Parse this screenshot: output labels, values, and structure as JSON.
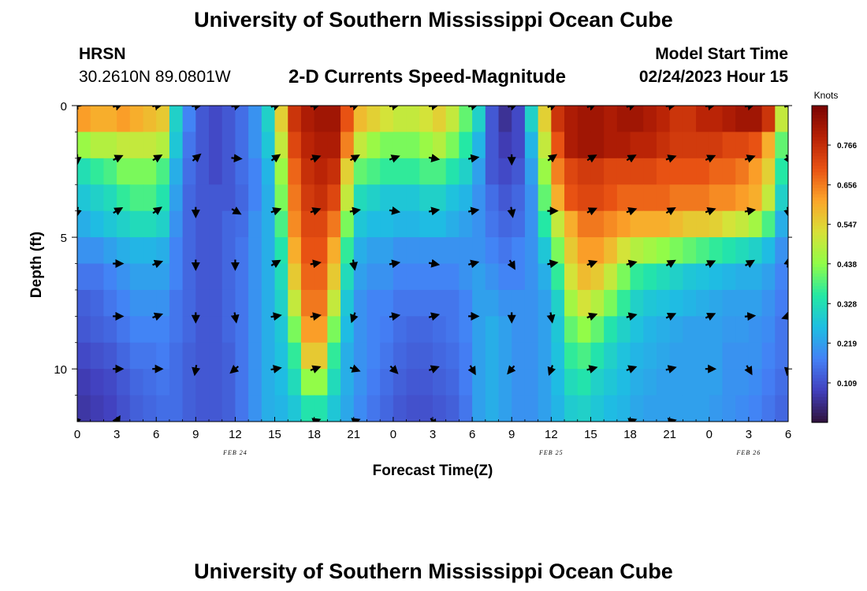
{
  "page": {
    "title": "University of Southern Mississippi Ocean Cube",
    "footer_title": "University of Southern Mississippi Ocean Cube",
    "station": "HRSN",
    "coords": "30.2610N  89.0801W",
    "plot_title": "2-D Currents Speed-Magnitude",
    "model_label": "Model Start Time",
    "model_time": "02/24/2023 Hour 15"
  },
  "chart_data": {
    "type": "heatmap",
    "title": "2-D Currents Speed-Magnitude",
    "xlabel": "Forecast Time(Z)",
    "ylabel": "Depth (ft)",
    "x_unit": "hours since FEB 24 00Z",
    "xlim": [
      0,
      54
    ],
    "ylim": [
      0,
      12
    ],
    "y_inverted": true,
    "x_ticks": [
      0,
      3,
      6,
      9,
      12,
      15,
      18,
      21,
      24,
      27,
      30,
      33,
      36,
      39,
      42,
      45,
      48,
      51,
      54
    ],
    "x_tick_labels": [
      "0",
      "3",
      "6",
      "9",
      "12",
      "15",
      "18",
      "21",
      "0",
      "3",
      "6",
      "9",
      "12",
      "15",
      "18",
      "21",
      "0",
      "3",
      "6"
    ],
    "y_ticks": [
      0,
      5,
      10
    ],
    "y_tick_labels": [
      "0",
      "5",
      "10"
    ],
    "date_labels": [
      {
        "x": 12,
        "text": "FEB 24"
      },
      {
        "x": 36,
        "text": "FEB 25"
      },
      {
        "x": 51,
        "text": "FEB 26"
      }
    ],
    "colorbar": {
      "unit": "Knots",
      "min": 0.0,
      "max": 0.875,
      "ticks": [
        0.109,
        0.219,
        0.328,
        0.438,
        0.547,
        0.656,
        0.766
      ],
      "tick_labels": [
        "0.109",
        "0.219",
        "0.328",
        "0.438",
        "0.547",
        "0.656",
        "0.766"
      ]
    },
    "speed_grid": {
      "x_hours": [
        0,
        1,
        2,
        3,
        4,
        5,
        6,
        7,
        8,
        9,
        10,
        11,
        12,
        13,
        14,
        15,
        16,
        17,
        18,
        19,
        20,
        21,
        22,
        23,
        24,
        25,
        26,
        27,
        28,
        29,
        30,
        31,
        32,
        33,
        34,
        35,
        36,
        37,
        38,
        39,
        40,
        41,
        42,
        43,
        44,
        45,
        46,
        47,
        48,
        49,
        50,
        51,
        52,
        53
      ],
      "depth_bands_ft": [
        [
          0,
          1
        ],
        [
          1,
          2
        ],
        [
          2,
          3
        ],
        [
          3,
          4
        ],
        [
          4,
          5
        ],
        [
          5,
          6
        ],
        [
          6,
          7
        ],
        [
          7,
          8
        ],
        [
          8,
          9
        ],
        [
          9,
          10
        ],
        [
          10,
          11
        ],
        [
          11,
          12
        ]
      ],
      "values_knots": [
        [
          0.62,
          0.6,
          0.6,
          0.62,
          0.6,
          0.58,
          0.56,
          0.3,
          0.18,
          0.12,
          0.1,
          0.12,
          0.15,
          0.2,
          0.3,
          0.55,
          0.75,
          0.8,
          0.82,
          0.82,
          0.7,
          0.58,
          0.55,
          0.52,
          0.5,
          0.5,
          0.52,
          0.55,
          0.5,
          0.4,
          0.3,
          0.12,
          0.06,
          0.1,
          0.3,
          0.55,
          0.75,
          0.8,
          0.82,
          0.82,
          0.8,
          0.82,
          0.82,
          0.8,
          0.78,
          0.75,
          0.75,
          0.78,
          0.78,
          0.8,
          0.82,
          0.82,
          0.75,
          0.5
        ],
        [
          0.45,
          0.48,
          0.48,
          0.5,
          0.5,
          0.5,
          0.48,
          0.28,
          0.16,
          0.12,
          0.1,
          0.12,
          0.15,
          0.2,
          0.28,
          0.5,
          0.72,
          0.78,
          0.8,
          0.8,
          0.65,
          0.5,
          0.45,
          0.42,
          0.42,
          0.42,
          0.45,
          0.48,
          0.42,
          0.35,
          0.25,
          0.12,
          0.08,
          0.1,
          0.25,
          0.5,
          0.7,
          0.8,
          0.82,
          0.82,
          0.8,
          0.8,
          0.78,
          0.78,
          0.76,
          0.74,
          0.74,
          0.74,
          0.74,
          0.72,
          0.72,
          0.7,
          0.6,
          0.4
        ],
        [
          0.33,
          0.36,
          0.38,
          0.42,
          0.42,
          0.42,
          0.38,
          0.24,
          0.15,
          0.12,
          0.1,
          0.12,
          0.15,
          0.18,
          0.25,
          0.45,
          0.68,
          0.76,
          0.78,
          0.76,
          0.55,
          0.4,
          0.38,
          0.36,
          0.36,
          0.36,
          0.38,
          0.38,
          0.34,
          0.3,
          0.22,
          0.12,
          0.1,
          0.12,
          0.22,
          0.45,
          0.65,
          0.72,
          0.74,
          0.74,
          0.72,
          0.72,
          0.72,
          0.72,
          0.7,
          0.7,
          0.7,
          0.7,
          0.68,
          0.68,
          0.66,
          0.62,
          0.55,
          0.35
        ],
        [
          0.28,
          0.3,
          0.32,
          0.36,
          0.38,
          0.38,
          0.34,
          0.22,
          0.14,
          0.12,
          0.12,
          0.12,
          0.14,
          0.18,
          0.24,
          0.42,
          0.66,
          0.74,
          0.76,
          0.72,
          0.5,
          0.32,
          0.3,
          0.28,
          0.28,
          0.28,
          0.3,
          0.3,
          0.27,
          0.25,
          0.2,
          0.15,
          0.12,
          0.14,
          0.2,
          0.4,
          0.6,
          0.7,
          0.72,
          0.72,
          0.7,
          0.68,
          0.68,
          0.68,
          0.68,
          0.66,
          0.66,
          0.66,
          0.64,
          0.64,
          0.62,
          0.6,
          0.5,
          0.3
        ],
        [
          0.24,
          0.26,
          0.28,
          0.3,
          0.32,
          0.32,
          0.3,
          0.2,
          0.14,
          0.12,
          0.12,
          0.14,
          0.15,
          0.2,
          0.24,
          0.38,
          0.64,
          0.72,
          0.72,
          0.66,
          0.42,
          0.28,
          0.26,
          0.26,
          0.25,
          0.25,
          0.26,
          0.26,
          0.24,
          0.22,
          0.2,
          0.16,
          0.14,
          0.15,
          0.2,
          0.35,
          0.5,
          0.6,
          0.66,
          0.66,
          0.64,
          0.62,
          0.6,
          0.6,
          0.6,
          0.58,
          0.56,
          0.56,
          0.55,
          0.52,
          0.5,
          0.46,
          0.38,
          0.24
        ],
        [
          0.2,
          0.2,
          0.22,
          0.24,
          0.25,
          0.25,
          0.24,
          0.18,
          0.14,
          0.12,
          0.12,
          0.14,
          0.16,
          0.2,
          0.24,
          0.34,
          0.6,
          0.7,
          0.7,
          0.6,
          0.36,
          0.24,
          0.22,
          0.22,
          0.2,
          0.2,
          0.2,
          0.2,
          0.2,
          0.2,
          0.2,
          0.18,
          0.16,
          0.18,
          0.2,
          0.28,
          0.42,
          0.56,
          0.62,
          0.62,
          0.58,
          0.52,
          0.48,
          0.46,
          0.44,
          0.42,
          0.4,
          0.38,
          0.36,
          0.34,
          0.32,
          0.3,
          0.26,
          0.2
        ],
        [
          0.16,
          0.16,
          0.18,
          0.2,
          0.22,
          0.22,
          0.22,
          0.18,
          0.14,
          0.12,
          0.12,
          0.14,
          0.16,
          0.2,
          0.24,
          0.32,
          0.56,
          0.68,
          0.68,
          0.56,
          0.32,
          0.22,
          0.2,
          0.2,
          0.18,
          0.18,
          0.18,
          0.18,
          0.18,
          0.2,
          0.22,
          0.2,
          0.18,
          0.18,
          0.2,
          0.24,
          0.36,
          0.52,
          0.58,
          0.56,
          0.5,
          0.42,
          0.36,
          0.34,
          0.32,
          0.3,
          0.28,
          0.27,
          0.26,
          0.25,
          0.24,
          0.24,
          0.22,
          0.18
        ],
        [
          0.13,
          0.14,
          0.16,
          0.18,
          0.2,
          0.2,
          0.2,
          0.16,
          0.14,
          0.12,
          0.12,
          0.14,
          0.16,
          0.2,
          0.24,
          0.3,
          0.5,
          0.66,
          0.66,
          0.5,
          0.28,
          0.2,
          0.18,
          0.18,
          0.16,
          0.16,
          0.16,
          0.16,
          0.16,
          0.18,
          0.22,
          0.22,
          0.2,
          0.2,
          0.2,
          0.22,
          0.3,
          0.46,
          0.52,
          0.48,
          0.42,
          0.36,
          0.3,
          0.28,
          0.27,
          0.26,
          0.25,
          0.24,
          0.23,
          0.22,
          0.22,
          0.22,
          0.2,
          0.17
        ],
        [
          0.12,
          0.13,
          0.14,
          0.16,
          0.18,
          0.18,
          0.18,
          0.16,
          0.14,
          0.12,
          0.12,
          0.14,
          0.16,
          0.2,
          0.24,
          0.28,
          0.42,
          0.62,
          0.62,
          0.42,
          0.26,
          0.2,
          0.18,
          0.17,
          0.15,
          0.14,
          0.14,
          0.15,
          0.16,
          0.18,
          0.22,
          0.24,
          0.22,
          0.2,
          0.2,
          0.22,
          0.28,
          0.4,
          0.44,
          0.4,
          0.34,
          0.3,
          0.27,
          0.25,
          0.24,
          0.23,
          0.22,
          0.22,
          0.22,
          0.21,
          0.21,
          0.2,
          0.19,
          0.16
        ],
        [
          0.1,
          0.11,
          0.12,
          0.14,
          0.16,
          0.16,
          0.17,
          0.15,
          0.13,
          0.12,
          0.12,
          0.13,
          0.16,
          0.2,
          0.24,
          0.27,
          0.36,
          0.56,
          0.56,
          0.36,
          0.24,
          0.2,
          0.18,
          0.16,
          0.14,
          0.13,
          0.13,
          0.14,
          0.15,
          0.17,
          0.22,
          0.24,
          0.22,
          0.2,
          0.2,
          0.22,
          0.27,
          0.36,
          0.38,
          0.34,
          0.3,
          0.27,
          0.25,
          0.24,
          0.23,
          0.22,
          0.22,
          0.22,
          0.22,
          0.2,
          0.2,
          0.2,
          0.18,
          0.16
        ],
        [
          0.08,
          0.09,
          0.1,
          0.12,
          0.14,
          0.15,
          0.16,
          0.15,
          0.13,
          0.12,
          0.12,
          0.13,
          0.16,
          0.2,
          0.24,
          0.26,
          0.32,
          0.44,
          0.44,
          0.32,
          0.24,
          0.2,
          0.17,
          0.15,
          0.13,
          0.12,
          0.12,
          0.13,
          0.14,
          0.17,
          0.22,
          0.24,
          0.22,
          0.2,
          0.2,
          0.22,
          0.26,
          0.32,
          0.34,
          0.3,
          0.28,
          0.26,
          0.24,
          0.23,
          0.22,
          0.22,
          0.22,
          0.22,
          0.22,
          0.2,
          0.2,
          0.19,
          0.17,
          0.15
        ],
        [
          0.07,
          0.08,
          0.09,
          0.11,
          0.13,
          0.14,
          0.15,
          0.15,
          0.13,
          0.12,
          0.12,
          0.13,
          0.16,
          0.2,
          0.24,
          0.25,
          0.28,
          0.34,
          0.34,
          0.28,
          0.23,
          0.19,
          0.16,
          0.14,
          0.12,
          0.11,
          0.11,
          0.12,
          0.13,
          0.16,
          0.22,
          0.24,
          0.22,
          0.2,
          0.2,
          0.22,
          0.25,
          0.29,
          0.3,
          0.28,
          0.26,
          0.25,
          0.23,
          0.22,
          0.22,
          0.22,
          0.22,
          0.22,
          0.21,
          0.2,
          0.19,
          0.18,
          0.16,
          0.14
        ]
      ]
    },
    "vectors": {
      "x_hours": [
        0,
        3,
        6,
        9,
        12,
        15,
        18,
        21,
        24,
        27,
        30,
        33,
        36,
        39,
        42,
        45,
        48,
        51,
        54
      ],
      "depths_ft": [
        0,
        2,
        4,
        6,
        8,
        10,
        12
      ],
      "directions_deg": [
        [
          95,
          20,
          10,
          10,
          15,
          20,
          15,
          20,
          10,
          10,
          15,
          20,
          25,
          25,
          20,
          10,
          10,
          15,
          20
        ],
        [
          270,
          25,
          30,
          40,
          355,
          35,
          20,
          30,
          20,
          350,
          10,
          270,
          35,
          30,
          30,
          20,
          25,
          20,
          300
        ],
        [
          260,
          30,
          35,
          270,
          330,
          20,
          20,
          10,
          350,
          10,
          10,
          280,
          0,
          25,
          20,
          30,
          20,
          10,
          280
        ],
        [
          null,
          0,
          20,
          270,
          270,
          30,
          10,
          280,
          10,
          350,
          15,
          300,
          10,
          20,
          15,
          30,
          25,
          30,
          80
        ],
        [
          null,
          0,
          20,
          270,
          280,
          10,
          10,
          250,
          10,
          15,
          0,
          270,
          280,
          20,
          15,
          25,
          25,
          5,
          200
        ],
        [
          null,
          0,
          0,
          260,
          220,
          10,
          20,
          340,
          315,
          20,
          300,
          230,
          250,
          15,
          20,
          15,
          0,
          300,
          260
        ],
        [
          135,
          60,
          null,
          null,
          null,
          null,
          20,
          20,
          null,
          300,
          null,
          null,
          null,
          null,
          20,
          15,
          null,
          null,
          null
        ]
      ]
    }
  }
}
